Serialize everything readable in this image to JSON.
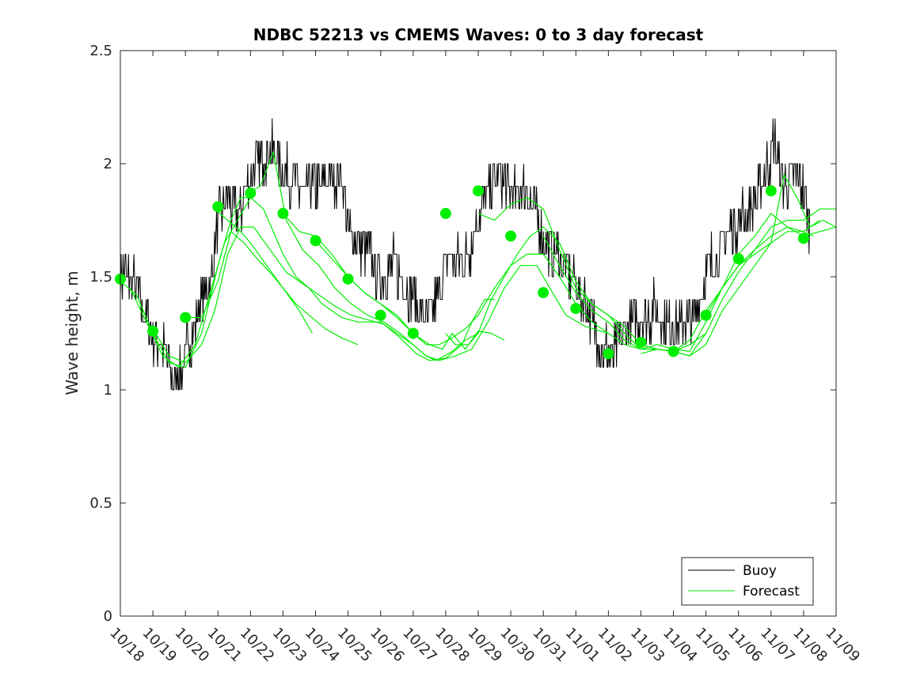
{
  "chart_data": {
    "type": "line",
    "title": "NDBC 52213 vs CMEMS Waves: 0 to 3 day forecast",
    "xlabel": "",
    "ylabel": "Wave height, m",
    "ylim": [
      0,
      2.5
    ],
    "yticks": [
      "0",
      "0.5",
      "1",
      "1.5",
      "2",
      "2.5"
    ],
    "xlim": [
      0,
      22
    ],
    "xticks": [
      "10/18",
      "10/19",
      "10/20",
      "10/21",
      "10/22",
      "10/23",
      "10/24",
      "10/25",
      "10/26",
      "10/27",
      "10/28",
      "10/29",
      "10/30",
      "10/31",
      "11/01",
      "11/02",
      "11/03",
      "11/04",
      "11/05",
      "11/06",
      "11/07",
      "11/08",
      "11/09"
    ],
    "legend": {
      "position": "bottom-right",
      "entries": [
        "Buoy",
        "Forecast"
      ]
    },
    "colors": {
      "buoy": "#000000",
      "forecast": "#00ee00"
    },
    "buoy_anchors": [
      [
        0,
        1.5
      ],
      [
        0.3,
        1.5
      ],
      [
        0.6,
        1.4
      ],
      [
        1,
        1.25
      ],
      [
        1.4,
        1.15
      ],
      [
        1.7,
        1.05
      ],
      [
        2,
        1.15
      ],
      [
        2.4,
        1.35
      ],
      [
        2.8,
        1.5
      ],
      [
        3,
        1.75
      ],
      [
        3.3,
        1.85
      ],
      [
        3.6,
        1.75
      ],
      [
        3.9,
        1.9
      ],
      [
        4.2,
        2.0
      ],
      [
        4.5,
        2.05
      ],
      [
        4.8,
        2.05
      ],
      [
        5,
        1.95
      ],
      [
        5.3,
        1.95
      ],
      [
        5.6,
        1.85
      ],
      [
        5.9,
        1.9
      ],
      [
        6.2,
        1.9
      ],
      [
        6.5,
        1.95
      ],
      [
        6.8,
        1.95
      ],
      [
        7,
        1.7
      ],
      [
        7.3,
        1.65
      ],
      [
        7.6,
        1.6
      ],
      [
        8,
        1.5
      ],
      [
        8.4,
        1.55
      ],
      [
        8.8,
        1.45
      ],
      [
        9.2,
        1.35
      ],
      [
        9.5,
        1.3
      ],
      [
        9.8,
        1.45
      ],
      [
        10.1,
        1.6
      ],
      [
        10.4,
        1.55
      ],
      [
        10.7,
        1.6
      ],
      [
        11,
        1.8
      ],
      [
        11.3,
        1.85
      ],
      [
        11.6,
        1.95
      ],
      [
        11.9,
        1.9
      ],
      [
        12.2,
        1.85
      ],
      [
        12.5,
        1.9
      ],
      [
        12.8,
        1.75
      ],
      [
        13.1,
        1.65
      ],
      [
        13.4,
        1.6
      ],
      [
        13.7,
        1.55
      ],
      [
        14,
        1.45
      ],
      [
        14.4,
        1.35
      ],
      [
        14.8,
        1.2
      ],
      [
        15.1,
        1.15
      ],
      [
        15.4,
        1.25
      ],
      [
        15.7,
        1.3
      ],
      [
        16,
        1.3
      ],
      [
        16.4,
        1.35
      ],
      [
        16.8,
        1.3
      ],
      [
        17.2,
        1.3
      ],
      [
        17.6,
        1.3
      ],
      [
        17.9,
        1.45
      ],
      [
        18.1,
        1.55
      ],
      [
        18.4,
        1.6
      ],
      [
        18.7,
        1.7
      ],
      [
        19,
        1.75
      ],
      [
        19.3,
        1.8
      ],
      [
        19.6,
        1.85
      ],
      [
        19.9,
        2.0
      ],
      [
        20.1,
        2.1
      ],
      [
        20.4,
        1.9
      ],
      [
        20.7,
        1.95
      ],
      [
        21,
        1.9
      ],
      [
        21.2,
        1.7
      ]
    ],
    "forecast_series": [
      {
        "name": "f0",
        "points": [
          [
            0,
            1.48
          ],
          [
            0.5,
            1.42
          ],
          [
            1,
            1.25
          ],
          [
            1.5,
            1.12
          ],
          [
            2,
            1.1
          ],
          [
            2.5,
            1.25
          ],
          [
            3,
            1.55
          ],
          [
            3.4,
            1.75
          ],
          [
            3.7,
            1.85
          ],
          [
            4.1,
            1.85
          ]
        ]
      },
      {
        "name": "f1",
        "points": [
          [
            0.3,
            1.45
          ],
          [
            0.8,
            1.3
          ],
          [
            1.3,
            1.15
          ],
          [
            1.8,
            1.1
          ],
          [
            2.3,
            1.2
          ],
          [
            2.8,
            1.45
          ],
          [
            3.2,
            1.65
          ],
          [
            3.6,
            1.75
          ],
          [
            4.0,
            1.85
          ],
          [
            4.4,
            1.8
          ],
          [
            5,
            1.6
          ],
          [
            5.4,
            1.5
          ],
          [
            5.8,
            1.45
          ],
          [
            6.2,
            1.38
          ],
          [
            6.8,
            1.32
          ],
          [
            7.3,
            1.3
          ],
          [
            8,
            1.3
          ],
          [
            8.5,
            1.25
          ],
          [
            9,
            1.2
          ],
          [
            9.4,
            1.15
          ],
          [
            9.7,
            1.13
          ],
          [
            10.2,
            1.17
          ],
          [
            10.6,
            1.22
          ],
          [
            11,
            1.25
          ]
        ]
      },
      {
        "name": "f2",
        "points": [
          [
            1,
            1.27
          ],
          [
            1.5,
            1.15
          ],
          [
            2,
            1.12
          ],
          [
            2.5,
            1.2
          ],
          [
            2.9,
            1.35
          ],
          [
            3.3,
            1.6
          ],
          [
            3.7,
            1.72
          ],
          [
            4.1,
            1.72
          ],
          [
            4.6,
            1.62
          ],
          [
            5.1,
            1.52
          ],
          [
            5.6,
            1.47
          ],
          [
            6.1,
            1.42
          ],
          [
            6.6,
            1.37
          ],
          [
            7.1,
            1.33
          ],
          [
            7.6,
            1.31
          ],
          [
            8.1,
            1.29
          ],
          [
            8.6,
            1.23
          ],
          [
            9.1,
            1.16
          ],
          [
            9.5,
            1.13
          ],
          [
            10,
            1.14
          ],
          [
            10.5,
            1.2
          ],
          [
            10.8,
            1.3
          ],
          [
            11.2,
            1.4
          ],
          [
            11.5,
            1.4
          ]
        ]
      },
      {
        "name": "f3",
        "points": [
          [
            2,
            1.32
          ],
          [
            2.5,
            1.32
          ],
          [
            3,
            1.48
          ],
          [
            3.4,
            1.7
          ],
          [
            3.8,
            1.65
          ],
          [
            4.2,
            1.58
          ],
          [
            4.6,
            1.52
          ],
          [
            5,
            1.45
          ],
          [
            5.4,
            1.38
          ],
          [
            5.8,
            1.33
          ],
          [
            6.3,
            1.27
          ],
          [
            6.8,
            1.23
          ],
          [
            7.3,
            1.2
          ]
        ]
      },
      {
        "name": "f4",
        "points": [
          [
            2.9,
            1.8
          ],
          [
            3.3,
            1.75
          ],
          [
            3.7,
            1.7
          ],
          [
            4.0,
            1.65
          ],
          [
            4.5,
            1.55
          ],
          [
            5,
            1.45
          ],
          [
            5.5,
            1.35
          ],
          [
            5.9,
            1.25
          ]
        ]
      },
      {
        "name": "f5",
        "points": [
          [
            3.9,
            1.87
          ],
          [
            4.3,
            1.9
          ],
          [
            4.7,
            2.05
          ],
          [
            5.1,
            1.75
          ],
          [
            5.6,
            1.62
          ],
          [
            6.1,
            1.55
          ],
          [
            6.6,
            1.45
          ],
          [
            7.1,
            1.38
          ],
          [
            7.6,
            1.33
          ],
          [
            8.1,
            1.3
          ],
          [
            8.6,
            1.25
          ],
          [
            9,
            1.2
          ],
          [
            9.4,
            1.15
          ],
          [
            9.8,
            1.13
          ],
          [
            10.3,
            1.15
          ],
          [
            10.8,
            1.18
          ],
          [
            11.3,
            1.3
          ],
          [
            11.8,
            1.45
          ],
          [
            12.3,
            1.55
          ],
          [
            12.8,
            1.55
          ],
          [
            13.2,
            1.45
          ],
          [
            13.7,
            1.33
          ],
          [
            14.3,
            1.28
          ],
          [
            15,
            1.25
          ]
        ]
      },
      {
        "name": "f6",
        "points": [
          [
            5,
            1.78
          ],
          [
            5.5,
            1.7
          ],
          [
            6,
            1.68
          ],
          [
            6.5,
            1.6
          ],
          [
            7,
            1.5
          ],
          [
            7.5,
            1.43
          ],
          [
            8,
            1.38
          ],
          [
            8.5,
            1.32
          ],
          [
            9,
            1.25
          ],
          [
            9.4,
            1.2
          ],
          [
            9.8,
            1.2
          ],
          [
            10.2,
            1.23
          ],
          [
            10.6,
            1.27
          ],
          [
            11,
            1.33
          ],
          [
            11.5,
            1.45
          ],
          [
            12,
            1.55
          ],
          [
            12.5,
            1.6
          ],
          [
            13,
            1.6
          ],
          [
            13.5,
            1.5
          ],
          [
            14,
            1.38
          ],
          [
            14.5,
            1.3
          ],
          [
            15,
            1.25
          ],
          [
            15.5,
            1.2
          ],
          [
            16,
            1.18
          ],
          [
            16.5,
            1.18
          ],
          [
            17,
            1.17
          ],
          [
            17.5,
            1.2
          ],
          [
            18,
            1.25
          ]
        ]
      },
      {
        "name": "f7",
        "points": [
          [
            6,
            1.66
          ],
          [
            6.5,
            1.58
          ],
          [
            7,
            1.5
          ],
          [
            7.5,
            1.43
          ],
          [
            8,
            1.38
          ],
          [
            8.5,
            1.33
          ],
          [
            9,
            1.25
          ],
          [
            9.5,
            1.2
          ],
          [
            9.9,
            1.18
          ],
          [
            10.2,
            1.25
          ],
          [
            10.6,
            1.18
          ],
          [
            11,
            1.26
          ],
          [
            11.4,
            1.25
          ],
          [
            11.8,
            1.22
          ]
        ]
      },
      {
        "name": "f8",
        "points": [
          [
            10,
            1.25
          ],
          [
            10.3,
            1.2
          ],
          [
            10.7,
            1.2
          ],
          [
            11,
            1.25
          ],
          [
            11.4,
            1.4
          ],
          [
            11.8,
            1.5
          ],
          [
            12.2,
            1.6
          ],
          [
            12.6,
            1.68
          ],
          [
            13,
            1.72
          ],
          [
            13.5,
            1.65
          ],
          [
            14,
            1.48
          ],
          [
            14.5,
            1.38
          ],
          [
            15,
            1.33
          ],
          [
            15.5,
            1.28
          ],
          [
            16,
            1.2
          ],
          [
            16.5,
            1.18
          ],
          [
            17,
            1.17
          ],
          [
            17.5,
            1.22
          ],
          [
            18,
            1.35
          ],
          [
            18.5,
            1.45
          ],
          [
            19,
            1.55
          ],
          [
            19.5,
            1.6
          ],
          [
            20,
            1.65
          ],
          [
            20.5,
            1.7
          ],
          [
            21,
            1.7
          ],
          [
            21.5,
            1.75
          ]
        ]
      },
      {
        "name": "f9",
        "points": [
          [
            11,
            1.78
          ],
          [
            11.5,
            1.75
          ],
          [
            12,
            1.82
          ],
          [
            12.5,
            1.85
          ],
          [
            13,
            1.8
          ],
          [
            13.5,
            1.62
          ],
          [
            14,
            1.45
          ],
          [
            14.5,
            1.38
          ],
          [
            15,
            1.33
          ],
          [
            15.5,
            1.25
          ],
          [
            16,
            1.18
          ],
          [
            16.5,
            1.18
          ],
          [
            17,
            1.17
          ],
          [
            17.5,
            1.15
          ],
          [
            18,
            1.25
          ],
          [
            18.5,
            1.4
          ],
          [
            19,
            1.52
          ],
          [
            19.5,
            1.62
          ],
          [
            20,
            1.72
          ],
          [
            20.5,
            1.75
          ],
          [
            21,
            1.75
          ],
          [
            21.5,
            1.8
          ],
          [
            22,
            1.8
          ]
        ]
      },
      {
        "name": "f10",
        "points": [
          [
            13,
            1.68
          ],
          [
            13.5,
            1.55
          ],
          [
            14,
            1.43
          ],
          [
            14.5,
            1.35
          ],
          [
            15,
            1.3
          ],
          [
            15.5,
            1.22
          ],
          [
            16,
            1.18
          ],
          [
            16.5,
            1.2
          ],
          [
            17,
            1.18
          ],
          [
            17.5,
            1.17
          ],
          [
            18,
            1.3
          ],
          [
            18.5,
            1.45
          ],
          [
            19,
            1.6
          ],
          [
            19.5,
            1.68
          ],
          [
            20,
            1.78
          ],
          [
            20.5,
            1.72
          ],
          [
            21,
            1.68
          ],
          [
            21.5,
            1.7
          ],
          [
            22,
            1.72
          ]
        ]
      },
      {
        "name": "f11",
        "points": [
          [
            16,
            1.16
          ],
          [
            16.5,
            1.18
          ],
          [
            17,
            1.17
          ],
          [
            17.5,
            1.15
          ],
          [
            18,
            1.2
          ],
          [
            18.5,
            1.35
          ],
          [
            19,
            1.45
          ],
          [
            19.5,
            1.55
          ],
          [
            20,
            1.65
          ],
          [
            20.4,
            1.95
          ],
          [
            20.8,
            1.85
          ],
          [
            21.2,
            1.72
          ],
          [
            21.6,
            1.75
          ],
          [
            22,
            1.72
          ]
        ]
      },
      {
        "name": "f12",
        "points": [
          [
            18,
            1.33
          ],
          [
            18.5,
            1.45
          ],
          [
            19,
            1.55
          ],
          [
            19.5,
            1.62
          ],
          [
            20,
            1.68
          ],
          [
            20.5,
            1.72
          ],
          [
            21,
            1.7
          ],
          [
            21.3,
            1.68
          ]
        ]
      }
    ],
    "forecast_markers": [
      [
        0,
        1.49
      ],
      [
        1,
        1.26
      ],
      [
        2,
        1.32
      ],
      [
        3,
        1.81
      ],
      [
        4,
        1.87
      ],
      [
        5,
        1.78
      ],
      [
        6,
        1.66
      ],
      [
        7,
        1.49
      ],
      [
        8,
        1.33
      ],
      [
        9,
        1.25
      ],
      [
        10,
        1.78
      ],
      [
        11,
        1.88
      ],
      [
        12,
        1.68
      ],
      [
        13,
        1.43
      ],
      [
        14,
        1.36
      ],
      [
        15,
        1.16
      ],
      [
        16,
        1.21
      ],
      [
        17,
        1.17
      ],
      [
        18,
        1.33
      ],
      [
        19,
        1.58
      ],
      [
        20,
        1.88
      ],
      [
        21,
        1.67
      ]
    ]
  }
}
